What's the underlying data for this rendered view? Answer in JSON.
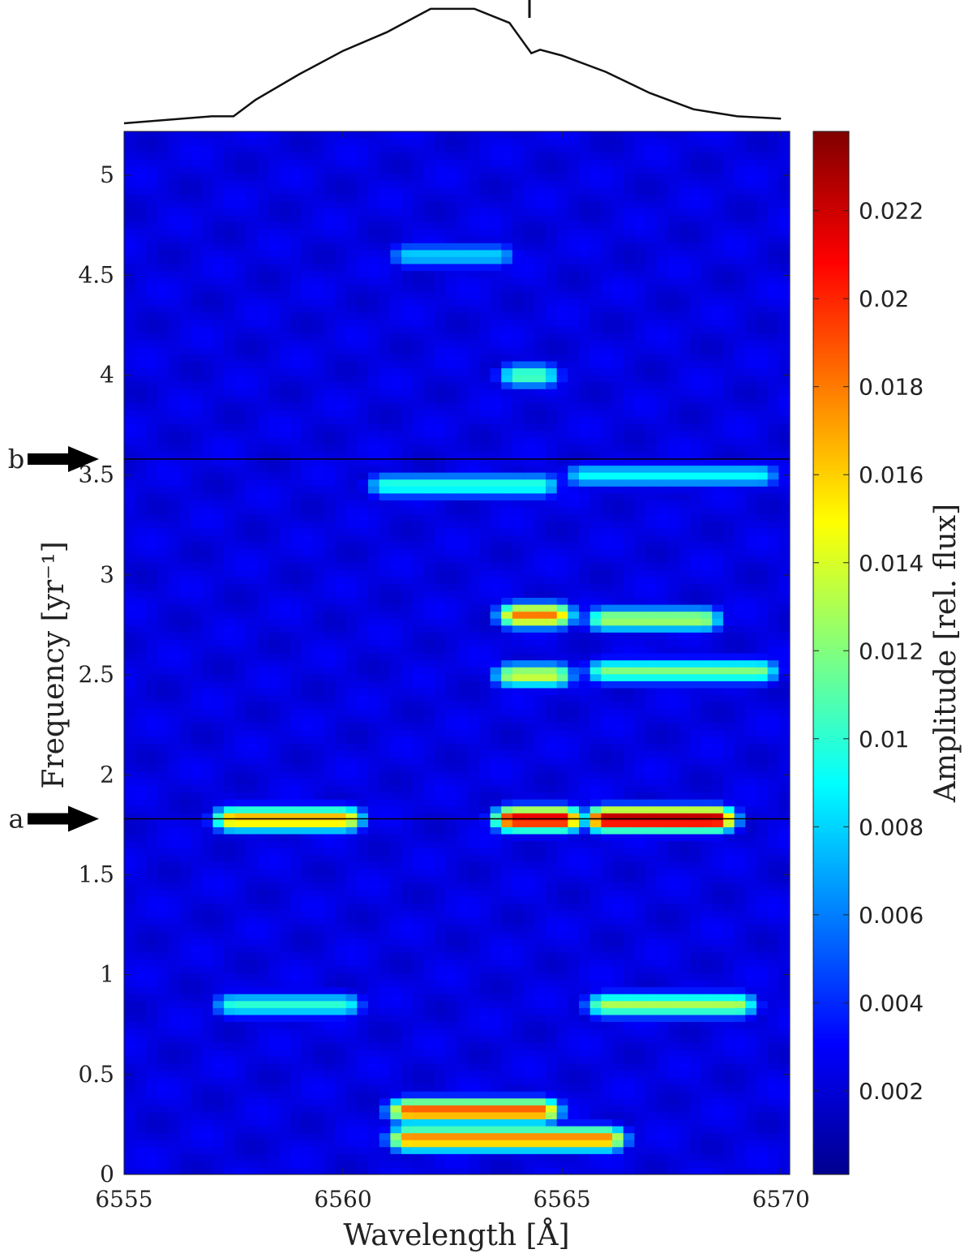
{
  "chart_data": {
    "type": "heatmap",
    "title": "",
    "xlabel": "Wavelength [Å]",
    "ylabel": "Frequency [yr⁻¹]",
    "colorbar_label": "Amplitude [rel. flux]",
    "xlim": [
      6555,
      6570.2
    ],
    "ylim": [
      0,
      5.22
    ],
    "clim": [
      0.0001,
      0.0238
    ],
    "x_ticks": [
      "6555",
      "6560",
      "6565",
      "6570"
    ],
    "y_ticks": [
      "0",
      "0.5",
      "1",
      "1.5",
      "2",
      "2.5",
      "3",
      "3.5",
      "4",
      "4.5",
      "5"
    ],
    "colorbar_ticks": [
      "0.002",
      "0.004",
      "0.006",
      "0.008",
      "0.01",
      "0.012",
      "0.014",
      "0.016",
      "0.018",
      "0.02",
      "0.022"
    ],
    "colormap": "jet",
    "grid": false,
    "marked_frequencies": [
      {
        "label": "a",
        "frequency": 1.78
      },
      {
        "label": "b",
        "frequency": 3.58
      }
    ],
    "bright_features": [
      {
        "frequency": 1.78,
        "wavelength_range": [
          6566.0,
          6568.5
        ],
        "amplitude": 0.023
      },
      {
        "frequency": 1.78,
        "wavelength_range": [
          6563.9,
          6565.0
        ],
        "amplitude": 0.022
      },
      {
        "frequency": 1.78,
        "wavelength_range": [
          6557.5,
          6560.0
        ],
        "amplitude": 0.017
      },
      {
        "frequency": 2.8,
        "wavelength_range": [
          6564.0,
          6564.8
        ],
        "amplitude": 0.018
      },
      {
        "frequency": 2.78,
        "wavelength_range": [
          6566.0,
          6568.2
        ],
        "amplitude": 0.013
      },
      {
        "frequency": 2.52,
        "wavelength_range": [
          6566.0,
          6569.5
        ],
        "amplitude": 0.012
      },
      {
        "frequency": 2.5,
        "wavelength_range": [
          6563.9,
          6564.8
        ],
        "amplitude": 0.014
      },
      {
        "frequency": 0.85,
        "wavelength_range": [
          6566.0,
          6569.0
        ],
        "amplitude": 0.013
      },
      {
        "frequency": 0.85,
        "wavelength_range": [
          6557.5,
          6560.0
        ],
        "amplitude": 0.01
      },
      {
        "frequency": 0.32,
        "wavelength_range": [
          6561.5,
          6564.5
        ],
        "amplitude": 0.019
      },
      {
        "frequency": 0.18,
        "wavelength_range": [
          6561.5,
          6566.0
        ],
        "amplitude": 0.018
      },
      {
        "frequency": 3.45,
        "wavelength_range": [
          6561.0,
          6564.5
        ],
        "amplitude": 0.01
      },
      {
        "frequency": 3.5,
        "wavelength_range": [
          6565.5,
          6569.5
        ],
        "amplitude": 0.009
      },
      {
        "frequency": 4.6,
        "wavelength_range": [
          6561.5,
          6563.5
        ],
        "amplitude": 0.008
      },
      {
        "frequency": 4.0,
        "wavelength_range": [
          6564.0,
          6564.5
        ],
        "amplitude": 0.011
      }
    ],
    "mean_profile": {
      "description_units": "relative flux, normalized",
      "wavelength": [
        6555,
        6557,
        6557.5,
        6558,
        6559,
        6560,
        6561,
        6562,
        6563,
        6563.8,
        6564.3,
        6564.5,
        6565,
        6566,
        6567,
        6568,
        6569,
        6570
      ],
      "flux": [
        0.0,
        0.06,
        0.06,
        0.2,
        0.42,
        0.62,
        0.78,
        0.98,
        0.98,
        0.86,
        0.6,
        0.63,
        0.58,
        0.44,
        0.26,
        0.12,
        0.06,
        0.04
      ]
    }
  }
}
